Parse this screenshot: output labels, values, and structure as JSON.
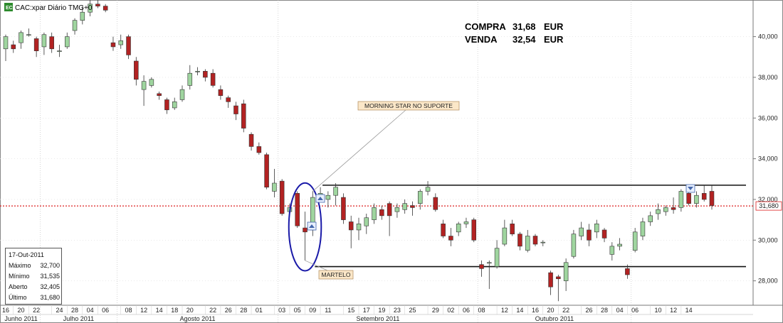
{
  "header": {
    "title": "CAC:xpar Diário TMG+0"
  },
  "prices": {
    "buy_label": "COMPRA",
    "buy_value": "31,68",
    "buy_unit": "EUR",
    "sell_label": "VENDA",
    "sell_value": "32,54",
    "sell_unit": "EUR"
  },
  "info_panel": {
    "date": "17-Out-2011",
    "rows": [
      {
        "label": "Máximo",
        "value": "32,700"
      },
      {
        "label": "Mínimo",
        "value": "31,535"
      },
      {
        "label": "Aberto",
        "value": "32,405"
      },
      {
        "label": "Último",
        "value": "31,680"
      }
    ]
  },
  "colors": {
    "up": "#9fd59f",
    "down": "#b22222",
    "last_line": "#dd2222",
    "circle": "#1a1aa8"
  },
  "chart_data": {
    "type": "candlestick",
    "ylim": [
      26.8,
      41.8
    ],
    "yticks": [
      28,
      30,
      32,
      34,
      36,
      38,
      40
    ],
    "ytick_labels": [
      "28,000",
      "30,000",
      "32,000",
      "34,000",
      "36,000",
      "38,000",
      "40,000"
    ],
    "last_price": 31.68,
    "last_price_label": "31,680",
    "support_level": 28.7,
    "resistance_level": 32.7,
    "x_ticks": [
      "16",
      "20",
      "22",
      "24",
      "28",
      "04",
      "06",
      "08",
      "12",
      "14",
      "18",
      "20",
      "22",
      "26",
      "28",
      "01",
      "03",
      "05",
      "09",
      "11",
      "15",
      "17",
      "19",
      "23",
      "25",
      "29",
      "02",
      "06",
      "08",
      "12",
      "14",
      "16",
      "20",
      "22",
      "26",
      "28",
      "04",
      "06",
      "10",
      "12",
      "14"
    ],
    "months": [
      "Junho 2011",
      "Julho 2011",
      "Agosto 2011",
      "Setembro 2011",
      "Outubro 2011"
    ],
    "annotations": [
      {
        "text": "MORNING STAR NO SUPORTE"
      },
      {
        "text": "MARTELO"
      }
    ],
    "candles": [
      {
        "o": 39.4,
        "h": 40.1,
        "l": 38.8,
        "c": 40.0
      },
      {
        "o": 39.6,
        "h": 39.8,
        "l": 39.2,
        "c": 39.4
      },
      {
        "o": 39.7,
        "h": 40.3,
        "l": 39.4,
        "c": 40.2
      },
      {
        "o": 40.1,
        "h": 40.4,
        "l": 40.0,
        "c": 40.1
      },
      {
        "o": 39.9,
        "h": 40.0,
        "l": 39.0,
        "c": 39.3
      },
      {
        "o": 39.5,
        "h": 40.2,
        "l": 39.1,
        "c": 40.1
      },
      {
        "o": 40.0,
        "h": 40.2,
        "l": 39.2,
        "c": 39.4
      },
      {
        "o": 39.3,
        "h": 39.6,
        "l": 39.0,
        "c": 39.3
      },
      {
        "o": 39.5,
        "h": 40.2,
        "l": 39.4,
        "c": 40.0
      },
      {
        "o": 40.3,
        "h": 40.9,
        "l": 40.1,
        "c": 40.8
      },
      {
        "o": 40.8,
        "h": 41.5,
        "l": 40.6,
        "c": 41.2
      },
      {
        "o": 41.2,
        "h": 41.8,
        "l": 41.0,
        "c": 41.6
      },
      {
        "o": 41.6,
        "h": 41.8,
        "l": 41.4,
        "c": 41.5
      },
      {
        "o": 41.5,
        "h": 41.6,
        "l": 41.2,
        "c": 41.3
      },
      {
        "o": 39.7,
        "h": 40.0,
        "l": 39.3,
        "c": 39.5
      },
      {
        "o": 39.6,
        "h": 40.1,
        "l": 39.4,
        "c": 39.8
      },
      {
        "o": 40.0,
        "h": 40.1,
        "l": 38.9,
        "c": 39.1
      },
      {
        "o": 38.8,
        "h": 39.0,
        "l": 37.6,
        "c": 37.9
      },
      {
        "o": 37.4,
        "h": 38.1,
        "l": 36.6,
        "c": 37.8
      },
      {
        "o": 37.6,
        "h": 38.0,
        "l": 37.5,
        "c": 37.9
      },
      {
        "o": 37.2,
        "h": 37.3,
        "l": 36.9,
        "c": 37.1
      },
      {
        "o": 36.9,
        "h": 37.0,
        "l": 36.2,
        "c": 36.4
      },
      {
        "o": 36.5,
        "h": 37.0,
        "l": 36.4,
        "c": 36.8
      },
      {
        "o": 36.9,
        "h": 37.6,
        "l": 36.8,
        "c": 37.4
      },
      {
        "o": 37.6,
        "h": 38.6,
        "l": 37.4,
        "c": 38.2
      },
      {
        "o": 38.3,
        "h": 38.5,
        "l": 38.1,
        "c": 38.3
      },
      {
        "o": 38.3,
        "h": 38.4,
        "l": 37.8,
        "c": 38.0
      },
      {
        "o": 38.2,
        "h": 38.4,
        "l": 37.5,
        "c": 37.6
      },
      {
        "o": 37.4,
        "h": 37.6,
        "l": 36.9,
        "c": 37.1
      },
      {
        "o": 37.0,
        "h": 37.1,
        "l": 36.5,
        "c": 36.8
      },
      {
        "o": 36.6,
        "h": 36.8,
        "l": 35.9,
        "c": 36.2
      },
      {
        "o": 36.7,
        "h": 36.9,
        "l": 35.3,
        "c": 35.5
      },
      {
        "o": 35.2,
        "h": 35.3,
        "l": 34.4,
        "c": 34.6
      },
      {
        "o": 34.6,
        "h": 34.8,
        "l": 34.2,
        "c": 34.3
      },
      {
        "o": 34.2,
        "h": 34.3,
        "l": 32.5,
        "c": 32.6
      },
      {
        "o": 32.4,
        "h": 33.5,
        "l": 32.1,
        "c": 32.8
      },
      {
        "o": 32.9,
        "h": 33.0,
        "l": 31.2,
        "c": 31.3
      },
      {
        "o": 31.4,
        "h": 31.8,
        "l": 31.2,
        "c": 31.6
      },
      {
        "o": 32.3,
        "h": 32.4,
        "l": 30.6,
        "c": 30.7
      },
      {
        "o": 30.6,
        "h": 31.4,
        "l": 29.0,
        "c": 30.4
      },
      {
        "o": 30.5,
        "h": 32.4,
        "l": 30.2,
        "c": 32.1
      },
      {
        "o": 32.2,
        "h": 32.6,
        "l": 32.1,
        "c": 32.3
      },
      {
        "o": 32.0,
        "h": 32.4,
        "l": 31.6,
        "c": 32.2
      },
      {
        "o": 32.2,
        "h": 32.8,
        "l": 31.7,
        "c": 32.6
      },
      {
        "o": 32.1,
        "h": 32.3,
        "l": 30.8,
        "c": 31.0
      },
      {
        "o": 30.9,
        "h": 31.2,
        "l": 29.6,
        "c": 30.5
      },
      {
        "o": 30.5,
        "h": 31.1,
        "l": 30.0,
        "c": 30.8
      },
      {
        "o": 30.7,
        "h": 31.3,
        "l": 30.3,
        "c": 31.1
      },
      {
        "o": 31.0,
        "h": 31.8,
        "l": 30.8,
        "c": 31.6
      },
      {
        "o": 31.5,
        "h": 31.7,
        "l": 31.0,
        "c": 31.2
      },
      {
        "o": 31.8,
        "h": 31.9,
        "l": 30.2,
        "c": 31.2
      },
      {
        "o": 31.4,
        "h": 31.8,
        "l": 31.1,
        "c": 31.6
      },
      {
        "o": 31.5,
        "h": 32.0,
        "l": 31.3,
        "c": 31.8
      },
      {
        "o": 31.7,
        "h": 31.9,
        "l": 31.2,
        "c": 31.6
      },
      {
        "o": 31.8,
        "h": 32.5,
        "l": 31.5,
        "c": 32.4
      },
      {
        "o": 32.4,
        "h": 32.9,
        "l": 32.2,
        "c": 32.6
      },
      {
        "o": 32.1,
        "h": 32.3,
        "l": 31.4,
        "c": 31.5
      },
      {
        "o": 30.8,
        "h": 31.0,
        "l": 30.1,
        "c": 30.2
      },
      {
        "o": 30.2,
        "h": 30.6,
        "l": 29.7,
        "c": 30.0
      },
      {
        "o": 30.4,
        "h": 30.9,
        "l": 30.2,
        "c": 30.8
      },
      {
        "o": 30.8,
        "h": 31.1,
        "l": 30.6,
        "c": 30.9
      },
      {
        "o": 31.0,
        "h": 31.1,
        "l": 29.9,
        "c": 30.0
      },
      {
        "o": 28.8,
        "h": 29.0,
        "l": 28.2,
        "c": 28.6
      },
      {
        "o": 28.9,
        "h": 29.0,
        "l": 27.6,
        "c": 28.9
      },
      {
        "o": 28.7,
        "h": 30.0,
        "l": 28.6,
        "c": 29.6
      },
      {
        "o": 29.8,
        "h": 31.0,
        "l": 29.7,
        "c": 30.6
      },
      {
        "o": 30.8,
        "h": 31.0,
        "l": 30.2,
        "c": 30.3
      },
      {
        "o": 30.3,
        "h": 30.4,
        "l": 29.5,
        "c": 29.7
      },
      {
        "o": 29.5,
        "h": 30.5,
        "l": 29.4,
        "c": 30.2
      },
      {
        "o": 30.2,
        "h": 30.3,
        "l": 29.7,
        "c": 29.8
      },
      {
        "o": 29.9,
        "h": 30.0,
        "l": 29.7,
        "c": 29.9
      },
      {
        "o": 28.4,
        "h": 28.5,
        "l": 27.3,
        "c": 27.7
      },
      {
        "o": 28.2,
        "h": 28.3,
        "l": 27.0,
        "c": 28.1
      },
      {
        "o": 28.0,
        "h": 29.1,
        "l": 27.5,
        "c": 28.9
      },
      {
        "o": 29.2,
        "h": 30.5,
        "l": 29.1,
        "c": 30.3
      },
      {
        "o": 30.2,
        "h": 30.9,
        "l": 30.0,
        "c": 30.6
      },
      {
        "o": 30.5,
        "h": 30.8,
        "l": 29.7,
        "c": 30.0
      },
      {
        "o": 30.4,
        "h": 31.0,
        "l": 30.1,
        "c": 30.8
      },
      {
        "o": 30.5,
        "h": 30.6,
        "l": 29.9,
        "c": 30.1
      },
      {
        "o": 29.3,
        "h": 29.9,
        "l": 29.0,
        "c": 29.7
      },
      {
        "o": 29.7,
        "h": 30.1,
        "l": 29.5,
        "c": 29.8
      },
      {
        "o": 28.6,
        "h": 28.8,
        "l": 28.1,
        "c": 28.3
      },
      {
        "o": 29.5,
        "h": 30.6,
        "l": 29.4,
        "c": 30.4
      },
      {
        "o": 30.2,
        "h": 31.1,
        "l": 30.0,
        "c": 30.9
      },
      {
        "o": 30.9,
        "h": 31.4,
        "l": 30.7,
        "c": 31.2
      },
      {
        "o": 31.3,
        "h": 31.8,
        "l": 31.0,
        "c": 31.5
      },
      {
        "o": 31.4,
        "h": 31.7,
        "l": 31.2,
        "c": 31.6
      },
      {
        "o": 31.6,
        "h": 32.1,
        "l": 31.3,
        "c": 31.5
      },
      {
        "o": 31.6,
        "h": 32.5,
        "l": 31.4,
        "c": 32.4
      },
      {
        "o": 32.3,
        "h": 32.6,
        "l": 31.7,
        "c": 31.8
      },
      {
        "o": 31.8,
        "h": 32.4,
        "l": 31.6,
        "c": 32.2
      },
      {
        "o": 32.3,
        "h": 32.7,
        "l": 31.9,
        "c": 32.0
      },
      {
        "o": 32.4,
        "h": 32.7,
        "l": 31.5,
        "c": 31.7
      }
    ]
  }
}
